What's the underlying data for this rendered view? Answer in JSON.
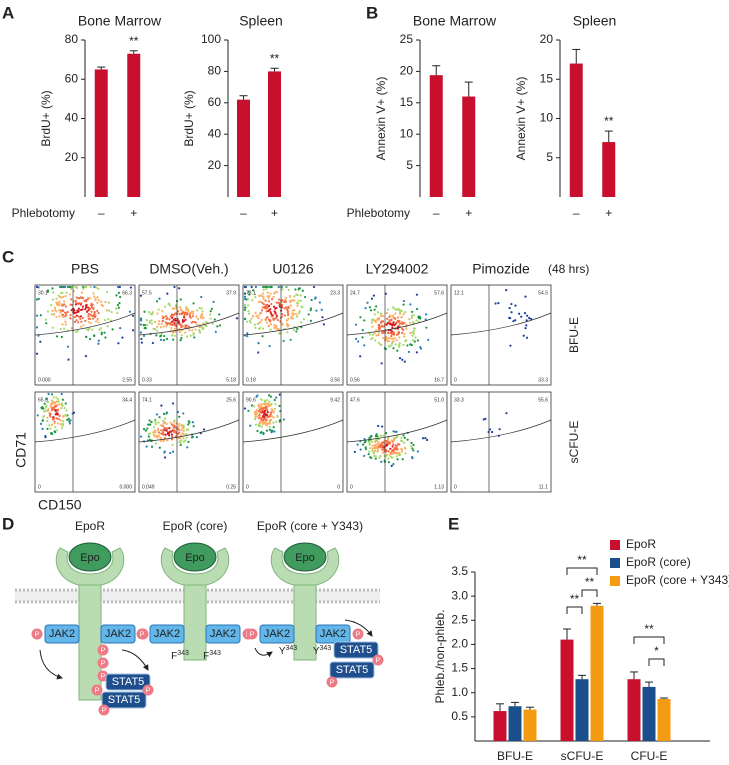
{
  "panels": [
    "A",
    "B",
    "C",
    "D",
    "E"
  ],
  "chart_data": [
    {
      "type": "bar",
      "title": "Bone Marrow",
      "ylabel": "BrdU+ (%)",
      "xlabel": "Phlebotomy",
      "categories": [
        "–",
        "+"
      ],
      "values": [
        65,
        73
      ],
      "errors": [
        1.2,
        1.5
      ],
      "significance": [
        null,
        "**"
      ],
      "color": "#c8102e",
      "ylim": [
        0,
        80
      ],
      "yticks": [
        20,
        40,
        60,
        80
      ]
    },
    {
      "type": "bar",
      "title": "Spleen",
      "ylabel": "BrdU+ (%)",
      "categories": [
        "–",
        "+"
      ],
      "values": [
        62,
        80
      ],
      "errors": [
        2.5,
        2
      ],
      "significance": [
        null,
        "**"
      ],
      "color": "#c8102e",
      "ylim": [
        0,
        100
      ],
      "yticks": [
        20,
        40,
        60,
        80,
        100
      ]
    },
    {
      "type": "bar",
      "title": "Bone Marrow",
      "ylabel": "Annexin V+ (%)",
      "xlabel": "Phlebotomy",
      "categories": [
        "–",
        "+"
      ],
      "values": [
        19.4,
        16
      ],
      "errors": [
        1.5,
        2.3
      ],
      "color": "#c8102e",
      "ylim": [
        0,
        25
      ],
      "yticks": [
        5,
        10,
        15,
        20,
        25
      ]
    },
    {
      "type": "bar",
      "title": "Spleen",
      "ylabel": "Annexin V+ (%)",
      "categories": [
        "–",
        "+"
      ],
      "values": [
        17,
        7
      ],
      "errors": [
        1.8,
        1.4
      ],
      "significance": [
        null,
        "**"
      ],
      "color": "#c8102e",
      "ylim": [
        0,
        20
      ],
      "yticks": [
        5,
        10,
        15,
        20
      ]
    },
    {
      "type": "grouped_bar",
      "ylabel": "Phleb./non-phleb.",
      "categories": [
        "BFU-E",
        "sCFU-E",
        "CFU-E"
      ],
      "series": [
        {
          "name": "EpoR",
          "color": "#c8102e",
          "values": [
            0.62,
            2.1,
            1.28
          ],
          "errors": [
            0.15,
            0.22,
            0.15
          ]
        },
        {
          "name": "EpoR (core)",
          "color": "#1a4f8b",
          "values": [
            0.72,
            1.28,
            1.12
          ],
          "errors": [
            0.08,
            0.08,
            0.1
          ]
        },
        {
          "name": "EpoR (core + Y343)",
          "color": "#f39c12",
          "values": [
            0.65,
            2.8,
            0.87
          ],
          "errors": [
            0.05,
            0.05,
            0.02
          ]
        }
      ],
      "annotations": [
        "**",
        "**",
        "**",
        "**",
        "*"
      ],
      "ylim": [
        0,
        3.5
      ],
      "yticks": [
        0.5,
        {
          "value": 1,
          "label": "1.0"
        },
        1.5,
        {
          "value": 2,
          "label": "2.0"
        },
        2.5,
        {
          "value": 3,
          "label": "3.0"
        },
        3.5
      ]
    }
  ],
  "flow": {
    "columns": [
      "PBS",
      "DMSO(Veh.)",
      "U0126",
      "LY294002",
      "Pimozide"
    ],
    "note": "(48 hrs)",
    "rows": [
      "BFU-E",
      "sCFU-E"
    ],
    "xlabel": "CD150",
    "ylabel": "CD71",
    "quadrants": [
      [
        [
          "30.1",
          "66.3",
          "0.000",
          "2.55"
        ],
        [
          "57.5",
          "37.9",
          "0.33",
          "5.18"
        ],
        [
          "73.1",
          "23.3",
          "0.18",
          "3.56"
        ],
        [
          "24.7",
          "57.6",
          "0.56",
          "16.7"
        ],
        [
          "12.1",
          "54.5",
          "0",
          "33.3"
        ]
      ],
      [
        [
          "65.6",
          "34.4",
          "0",
          "0.000"
        ],
        [
          "74.1",
          "25.6",
          "0.049",
          "0.25"
        ],
        [
          "90.6",
          "9.42",
          "0",
          "0"
        ],
        [
          "47.6",
          "51.0",
          "0",
          "1.13"
        ],
        [
          "33.3",
          "55.6",
          "0",
          "11.1"
        ]
      ]
    ]
  },
  "diagram": {
    "receptors": [
      "EpoR",
      "EpoR (core)",
      "EpoR (core + Y343)"
    ],
    "ligand": "Epo",
    "kinase": "JAK2",
    "phospho": "P",
    "stat": "STAT5",
    "residues": [
      {
        "aa": "F",
        "pos": "343"
      },
      {
        "aa": "Y",
        "pos": "343"
      }
    ]
  }
}
